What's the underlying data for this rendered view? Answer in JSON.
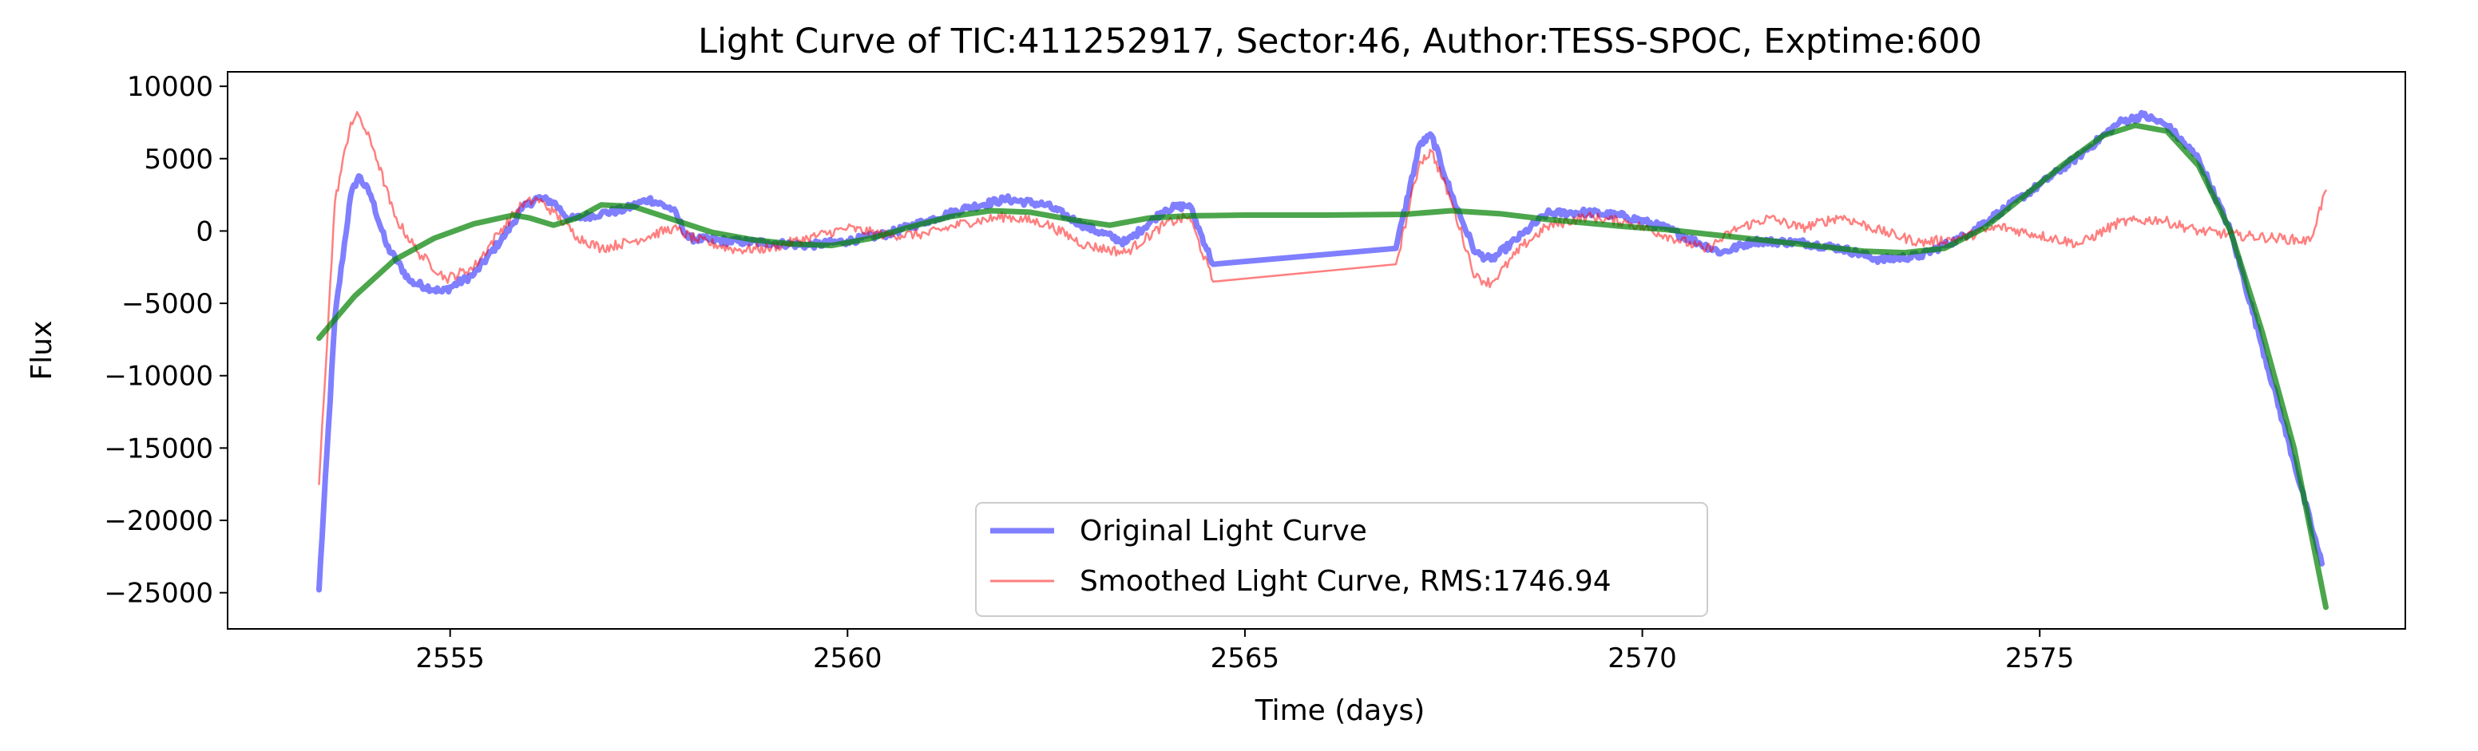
{
  "chart_data": {
    "type": "line",
    "title": "Light Curve of TIC:411252917, Sector:46, Author:TESS-SPOC, Exptime:600",
    "xlabel": "Time (days)",
    "ylabel": "Flux",
    "xlim": [
      2552.2,
      2579.6
    ],
    "ylim": [
      -27500,
      11000
    ],
    "x_ticks": [
      2555,
      2560,
      2565,
      2570,
      2575
    ],
    "x_tick_labels": [
      "2555",
      "2560",
      "2565",
      "2570",
      "2575"
    ],
    "y_ticks": [
      10000,
      5000,
      0,
      -5000,
      -10000,
      -15000,
      -20000,
      -25000
    ],
    "y_tick_labels": [
      "10000",
      "5000",
      "0",
      "−5000",
      "−10000",
      "−15000",
      "−20000",
      "−25000"
    ],
    "grid": false,
    "legend_position": "lower-center",
    "series": [
      {
        "name": "Original Light Curve",
        "color": "#0000ff",
        "opacity": 0.5,
        "noise": 500,
        "points": [
          [
            2553.35,
            -24800
          ],
          [
            2553.55,
            -6000
          ],
          [
            2553.75,
            2500
          ],
          [
            2553.85,
            3800
          ],
          [
            2554.0,
            2500
          ],
          [
            2554.2,
            -1000
          ],
          [
            2554.5,
            -3500
          ],
          [
            2554.9,
            -4200
          ],
          [
            2555.3,
            -3000
          ],
          [
            2555.7,
            -200
          ],
          [
            2555.9,
            1500
          ],
          [
            2556.1,
            2300
          ],
          [
            2556.3,
            2000
          ],
          [
            2556.5,
            800
          ],
          [
            2556.9,
            1200
          ],
          [
            2557.2,
            1500
          ],
          [
            2557.5,
            2200
          ],
          [
            2557.8,
            1500
          ],
          [
            2558.0,
            -500
          ],
          [
            2558.5,
            -700
          ],
          [
            2559.0,
            -800
          ],
          [
            2559.5,
            -1000
          ],
          [
            2560.0,
            -700
          ],
          [
            2560.5,
            -200
          ],
          [
            2561.0,
            700
          ],
          [
            2561.5,
            1600
          ],
          [
            2562.0,
            2200
          ],
          [
            2562.5,
            1800
          ],
          [
            2563.0,
            300
          ],
          [
            2563.5,
            -800
          ],
          [
            2564.0,
            1500
          ],
          [
            2564.3,
            1800
          ],
          [
            2564.6,
            -2300
          ],
          [
            2566.9,
            -1200
          ],
          [
            2567.2,
            6000
          ],
          [
            2567.35,
            6600
          ],
          [
            2567.6,
            2500
          ],
          [
            2567.9,
            -1500
          ],
          [
            2568.1,
            -2000
          ],
          [
            2568.5,
            -200
          ],
          [
            2568.8,
            1200
          ],
          [
            2569.3,
            1300
          ],
          [
            2569.8,
            1000
          ],
          [
            2570.3,
            200
          ],
          [
            2570.7,
            -800
          ],
          [
            2571.0,
            -1500
          ],
          [
            2571.4,
            -700
          ],
          [
            2572.0,
            -800
          ],
          [
            2572.5,
            -1200
          ],
          [
            2573.0,
            -2000
          ],
          [
            2573.5,
            -1700
          ],
          [
            2574.0,
            -500
          ],
          [
            2574.5,
            1300
          ],
          [
            2575.0,
            3200
          ],
          [
            2575.5,
            5200
          ],
          [
            2576.0,
            7500
          ],
          [
            2576.3,
            8000
          ],
          [
            2576.6,
            7300
          ],
          [
            2577.0,
            5000
          ],
          [
            2577.4,
            0
          ],
          [
            2577.8,
            -8000
          ],
          [
            2578.2,
            -16000
          ],
          [
            2578.45,
            -21000
          ],
          [
            2578.55,
            -23000
          ]
        ]
      },
      {
        "name": "Smoothed Light Curve, RMS:1746.94",
        "color": "#ff0000",
        "opacity": 0.5,
        "noise": 700,
        "points": [
          [
            2553.35,
            -17500
          ],
          [
            2553.55,
            2000
          ],
          [
            2553.75,
            7500
          ],
          [
            2553.85,
            8000
          ],
          [
            2554.05,
            5500
          ],
          [
            2554.3,
            1000
          ],
          [
            2554.6,
            -1500
          ],
          [
            2554.95,
            -3300
          ],
          [
            2555.3,
            -2500
          ],
          [
            2555.6,
            -200
          ],
          [
            2555.9,
            1800
          ],
          [
            2556.1,
            2200
          ],
          [
            2556.3,
            1300
          ],
          [
            2556.6,
            -400
          ],
          [
            2556.9,
            -1200
          ],
          [
            2557.3,
            -700
          ],
          [
            2557.8,
            200
          ],
          [
            2558.1,
            -600
          ],
          [
            2558.6,
            -1300
          ],
          [
            2559.0,
            -1200
          ],
          [
            2559.5,
            -500
          ],
          [
            2560.0,
            200
          ],
          [
            2560.5,
            -300
          ],
          [
            2561.0,
            -200
          ],
          [
            2561.5,
            600
          ],
          [
            2562.0,
            1000
          ],
          [
            2562.5,
            500
          ],
          [
            2563.0,
            -1000
          ],
          [
            2563.5,
            -1500
          ],
          [
            2564.0,
            500
          ],
          [
            2564.3,
            1000
          ],
          [
            2564.6,
            -3500
          ],
          [
            2566.9,
            -2300
          ],
          [
            2567.2,
            4800
          ],
          [
            2567.35,
            5500
          ],
          [
            2567.6,
            2000
          ],
          [
            2567.9,
            -3200
          ],
          [
            2568.1,
            -3600
          ],
          [
            2568.5,
            -1000
          ],
          [
            2568.8,
            300
          ],
          [
            2569.3,
            1000
          ],
          [
            2569.8,
            600
          ],
          [
            2570.3,
            -300
          ],
          [
            2570.8,
            -1300
          ],
          [
            2571.2,
            200
          ],
          [
            2571.6,
            900
          ],
          [
            2572.0,
            200
          ],
          [
            2572.5,
            1000
          ],
          [
            2573.0,
            0
          ],
          [
            2573.5,
            -800
          ],
          [
            2574.0,
            -500
          ],
          [
            2574.5,
            300
          ],
          [
            2575.0,
            -300
          ],
          [
            2575.5,
            -900
          ],
          [
            2576.0,
            600
          ],
          [
            2576.5,
            800
          ],
          [
            2577.0,
            0
          ],
          [
            2577.5,
            -300
          ],
          [
            2578.0,
            -500
          ],
          [
            2578.4,
            -700
          ],
          [
            2578.6,
            2800
          ]
        ]
      },
      {
        "name": "",
        "color": "#008000",
        "opacity": 0.7,
        "noise": 0,
        "points": [
          [
            2553.35,
            -7400
          ],
          [
            2553.8,
            -4500
          ],
          [
            2554.3,
            -2000
          ],
          [
            2554.8,
            -500
          ],
          [
            2555.3,
            500
          ],
          [
            2555.8,
            1100
          ],
          [
            2556.0,
            900
          ],
          [
            2556.3,
            400
          ],
          [
            2556.6,
            900
          ],
          [
            2556.9,
            1800
          ],
          [
            2557.3,
            1700
          ],
          [
            2557.8,
            800
          ],
          [
            2558.3,
            -100
          ],
          [
            2558.8,
            -600
          ],
          [
            2559.3,
            -900
          ],
          [
            2559.8,
            -1000
          ],
          [
            2560.3,
            -500
          ],
          [
            2560.8,
            300
          ],
          [
            2561.3,
            1000
          ],
          [
            2561.8,
            1400
          ],
          [
            2562.3,
            1300
          ],
          [
            2562.8,
            800
          ],
          [
            2563.3,
            400
          ],
          [
            2563.8,
            900
          ],
          [
            2564.3,
            1050
          ],
          [
            2565.0,
            1100
          ],
          [
            2566.0,
            1100
          ],
          [
            2567.0,
            1150
          ],
          [
            2567.6,
            1400
          ],
          [
            2568.2,
            1200
          ],
          [
            2568.8,
            800
          ],
          [
            2569.4,
            500
          ],
          [
            2569.8,
            300
          ],
          [
            2570.3,
            100
          ],
          [
            2570.8,
            -200
          ],
          [
            2571.3,
            -500
          ],
          [
            2571.8,
            -800
          ],
          [
            2572.3,
            -1100
          ],
          [
            2572.8,
            -1400
          ],
          [
            2573.3,
            -1500
          ],
          [
            2573.8,
            -1200
          ],
          [
            2574.3,
            200
          ],
          [
            2574.8,
            2400
          ],
          [
            2575.3,
            4600
          ],
          [
            2575.8,
            6600
          ],
          [
            2576.2,
            7300
          ],
          [
            2576.6,
            6900
          ],
          [
            2577.0,
            4500
          ],
          [
            2577.4,
            0
          ],
          [
            2577.8,
            -7000
          ],
          [
            2578.2,
            -15000
          ],
          [
            2578.6,
            -26000
          ]
        ]
      }
    ]
  }
}
